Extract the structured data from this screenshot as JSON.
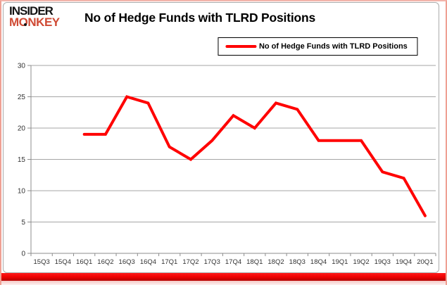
{
  "logo": {
    "line1": "INSIDER",
    "line2": "MONKEY"
  },
  "header": {
    "title": "No of Hedge Funds with TLRD Positions"
  },
  "legend": {
    "label": "No of Hedge Funds with TLRD Positions"
  },
  "colors": {
    "series_red": "#ff0000",
    "logo_red": "#cf4a34",
    "gridline": "#a6a6a6",
    "axis": "#8c8c8c",
    "tick_label": "#333333",
    "frame_border": "#ababab",
    "bottom_bar": "#e60000"
  },
  "chart_data": {
    "type": "line",
    "title": "No of Hedge Funds with TLRD Positions",
    "categories": [
      "15Q3",
      "15Q4",
      "16Q1",
      "16Q2",
      "16Q3",
      "16Q4",
      "17Q1",
      "17Q2",
      "17Q3",
      "17Q4",
      "18Q1",
      "18Q2",
      "18Q3",
      "18Q4",
      "19Q1",
      "19Q2",
      "19Q3",
      "19Q4",
      "20Q1"
    ],
    "series": [
      {
        "name": "No of Hedge Funds with TLRD Positions",
        "color": "#ff0000",
        "values": [
          null,
          null,
          19,
          19,
          25,
          24,
          17,
          15,
          18,
          22,
          20,
          24,
          23,
          18,
          18,
          18,
          13,
          12,
          6
        ]
      }
    ],
    "ylim": [
      0,
      30
    ],
    "yticks": [
      0,
      5,
      10,
      15,
      20,
      25,
      30
    ],
    "grid": true,
    "legend_position": "top-center",
    "xlabel": "",
    "ylabel": ""
  }
}
